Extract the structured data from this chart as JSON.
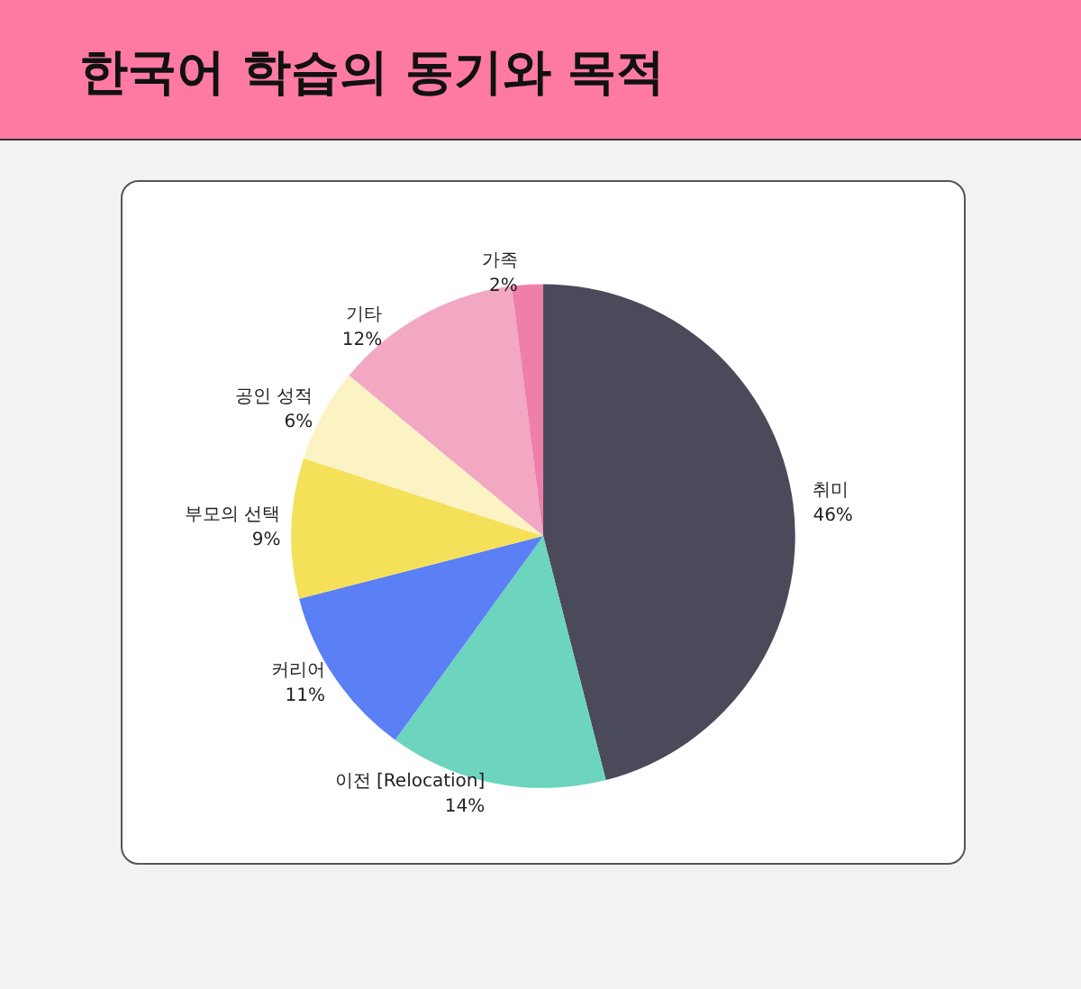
{
  "chart_data": {
    "type": "pie",
    "title": "한국어 학습의 동기와 목적",
    "categories": [
      "취미",
      "이전 [Relocation]",
      "커리어",
      "부모의 선택",
      "공인 성적",
      "기타",
      "가족"
    ],
    "values": [
      46,
      14,
      11,
      9,
      6,
      12,
      2
    ],
    "value_labels": [
      "46%",
      "14%",
      "11%",
      "9%",
      "6%",
      "12%",
      "2%"
    ],
    "colors": [
      "#4a4a5a",
      "#6dd5bd",
      "#5b7ff5",
      "#f5e05a",
      "#fbf3c4",
      "#f2a7c3",
      "#ee7fa9"
    ],
    "legend": false
  }
}
